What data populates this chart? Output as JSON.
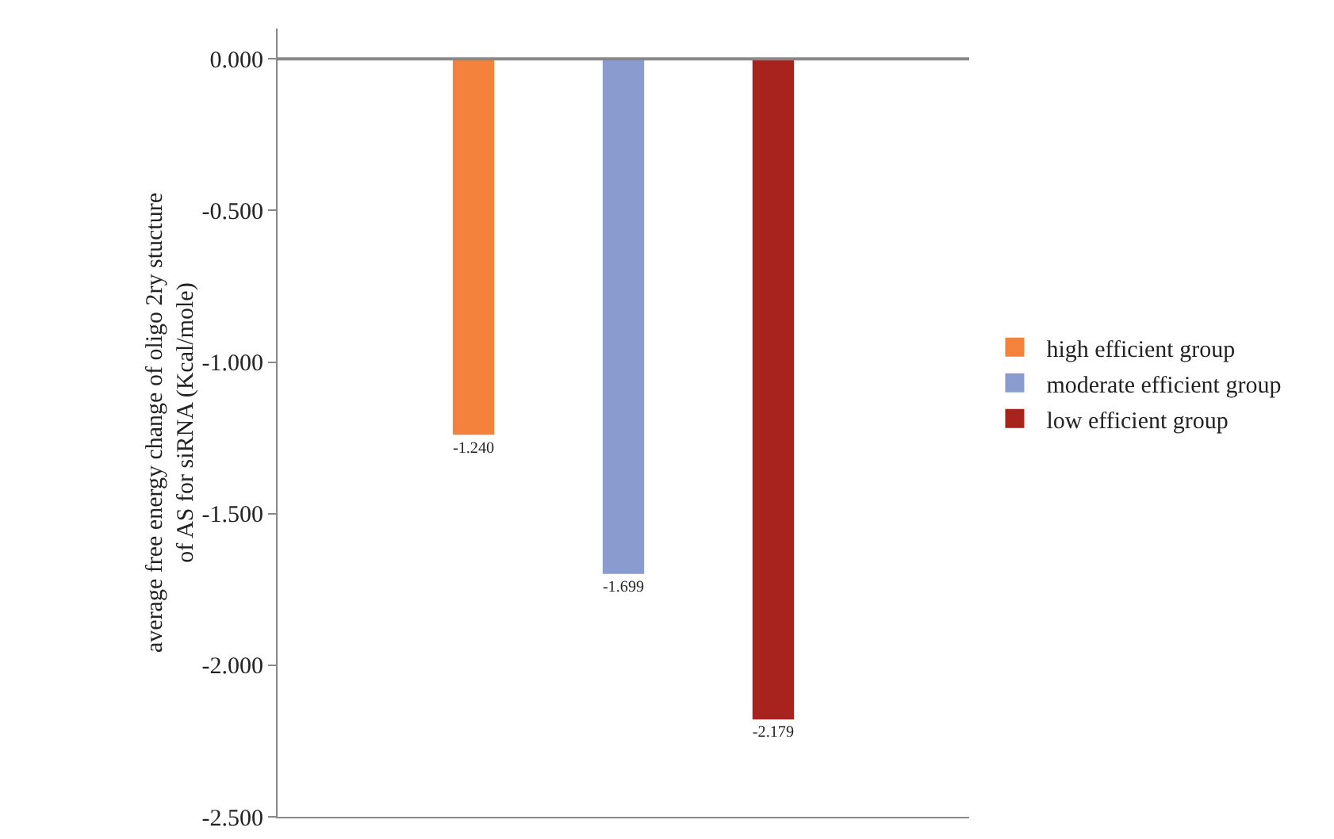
{
  "chart_data": {
    "type": "bar",
    "ylabel": "average free energy change of oligo 2ry stucture\nof AS for siRNA (Kcal/mole)",
    "categories": [
      null
    ],
    "series": [
      {
        "name": "high efficient group",
        "color": "#f4823c",
        "values": [
          -1.24
        ],
        "value_labels": [
          "-1.240"
        ]
      },
      {
        "name": "moderate efficient group",
        "color": "#8a9bd0",
        "values": [
          -1.699
        ],
        "value_labels": [
          "-1.699"
        ]
      },
      {
        "name": "low efficient group",
        "color": "#a8231d",
        "values": [
          -2.179
        ],
        "value_labels": [
          "-2.179"
        ]
      }
    ],
    "ylim": [
      -2.5,
      0.1
    ],
    "yticks": [
      {
        "value": 0,
        "label": "0.000"
      },
      {
        "value": -0.5,
        "label": "-0.500"
      },
      {
        "value": -1,
        "label": "-1.000"
      },
      {
        "value": -1.5,
        "label": "-1.500"
      },
      {
        "value": -2,
        "label": "-2.000"
      },
      {
        "value": -2.5,
        "label": "-2.500"
      }
    ],
    "ref_lines": [
      {
        "axis": "y",
        "value": 0,
        "color": "#888888"
      }
    ],
    "legend": "right"
  }
}
